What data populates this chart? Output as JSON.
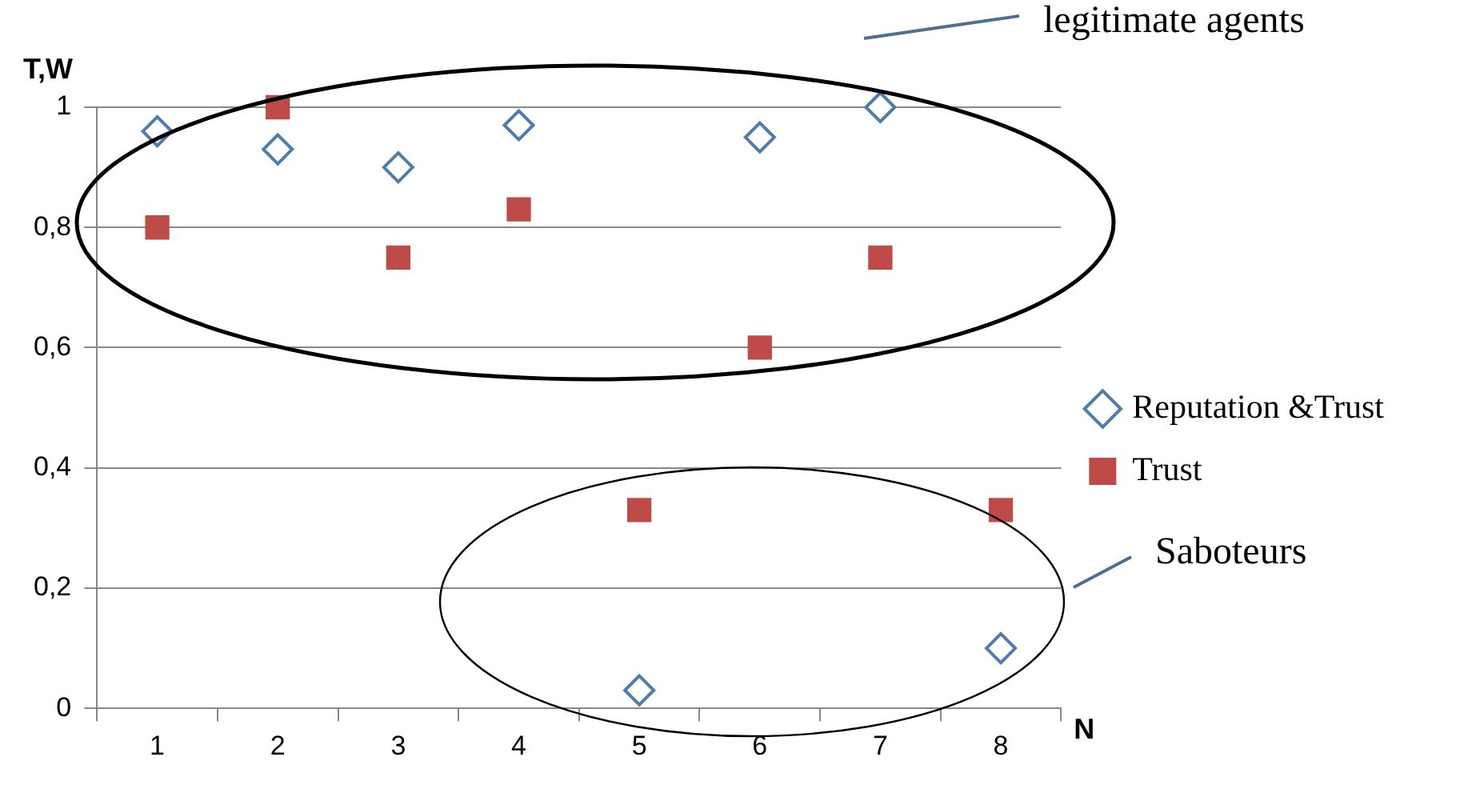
{
  "chart_data": {
    "type": "scatter",
    "xlabel": "N",
    "ylabel": "T,W",
    "categories": [
      "1",
      "2",
      "3",
      "4",
      "5",
      "6",
      "7",
      "8"
    ],
    "series": [
      {
        "name": "Reputation &Trust",
        "color": "#4f7dab",
        "marker": "diamond",
        "values": [
          0.96,
          0.93,
          0.9,
          0.97,
          0.03,
          0.95,
          1.0,
          0.1
        ]
      },
      {
        "name": "Trust",
        "color": "#be4b48",
        "marker": "square",
        "values": [
          0.8,
          1.0,
          0.75,
          0.83,
          0.33,
          0.6,
          0.75,
          0.33
        ]
      }
    ],
    "ylim": [
      0,
      1
    ],
    "yticks": [
      0,
      {
        "value": 0.2,
        "label": "0,2"
      },
      {
        "value": 0.4,
        "label": "0,4"
      },
      {
        "value": 0.6,
        "label": "0,6"
      },
      {
        "value": 0.8,
        "label": "0,8"
      },
      1
    ],
    "grid": "y",
    "legend": "right",
    "annotations": [
      "legitimate agents",
      "Saboteurs"
    ]
  }
}
